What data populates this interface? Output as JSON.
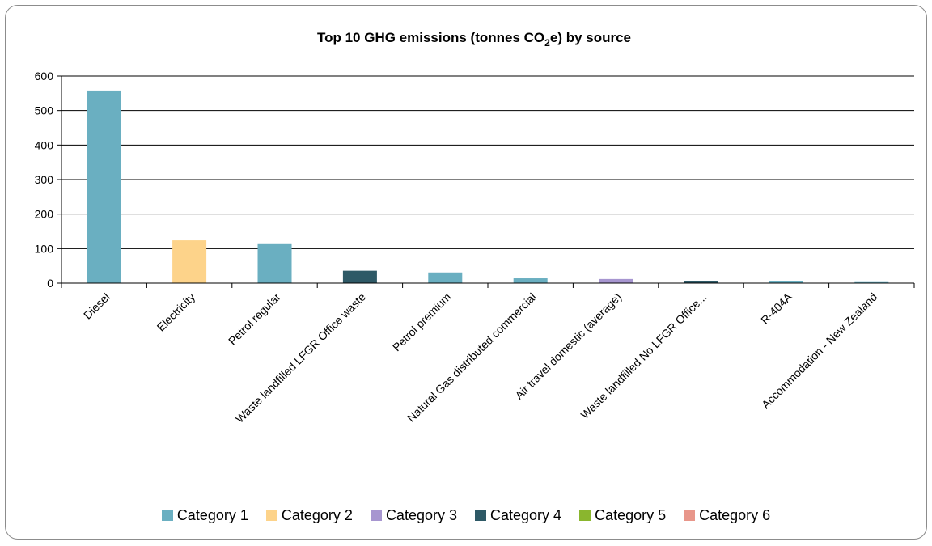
{
  "chart_data": {
    "type": "bar",
    "title_main": "Top 10 GHG emissions (tonnes CO",
    "title_sub": "2",
    "title_tail": "e) by source",
    "categories": [
      "Diesel",
      "Electricity",
      "Petrol regular",
      "Waste landfilled LFGR Office waste",
      "Petrol premium",
      "Natural Gas distributed commercial",
      "Air travel domestic (average)",
      "Waste landfilled No LFGR Office...",
      "R-404A",
      "Accommodation - New Zealand"
    ],
    "values": [
      558,
      124,
      113,
      36,
      31,
      14,
      12,
      7,
      5,
      3
    ],
    "bar_category_index": [
      0,
      1,
      0,
      3,
      0,
      0,
      2,
      3,
      0,
      0
    ],
    "ylim": [
      0,
      600
    ],
    "yticks": [
      0,
      100,
      200,
      300,
      400,
      500,
      600
    ],
    "grid": true,
    "legend_position": "bottom",
    "legend": [
      {
        "name": "Category 1",
        "color": "#6aafc1"
      },
      {
        "name": "Category 2",
        "color": "#fdd38a"
      },
      {
        "name": "Category 3",
        "color": "#a796d0"
      },
      {
        "name": "Category 4",
        "color": "#2e5966"
      },
      {
        "name": "Category 5",
        "color": "#8ab62e"
      },
      {
        "name": "Category 6",
        "color": "#e8968a"
      }
    ]
  }
}
